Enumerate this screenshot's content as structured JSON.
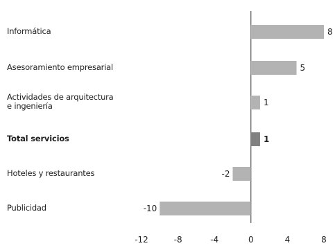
{
  "chart_data": {
    "type": "bar",
    "orientation": "horizontal",
    "categories": [
      "Informática",
      "Asesoramiento empresarial",
      "Actividades de arquitectura\ne ingeniería",
      "Total servicios",
      "Hoteles y restaurantes",
      "Publicidad"
    ],
    "values": [
      8,
      5,
      1,
      1,
      -2,
      -10
    ],
    "highlight": [
      "Total servicios"
    ],
    "xlim": [
      -12,
      8
    ],
    "xticks": [
      -12,
      -8,
      -4,
      0,
      4,
      8
    ],
    "grid": false,
    "colors": {
      "bar": "#b3b3b3",
      "highlight_bar": "#808080",
      "axis": "#333333"
    }
  }
}
